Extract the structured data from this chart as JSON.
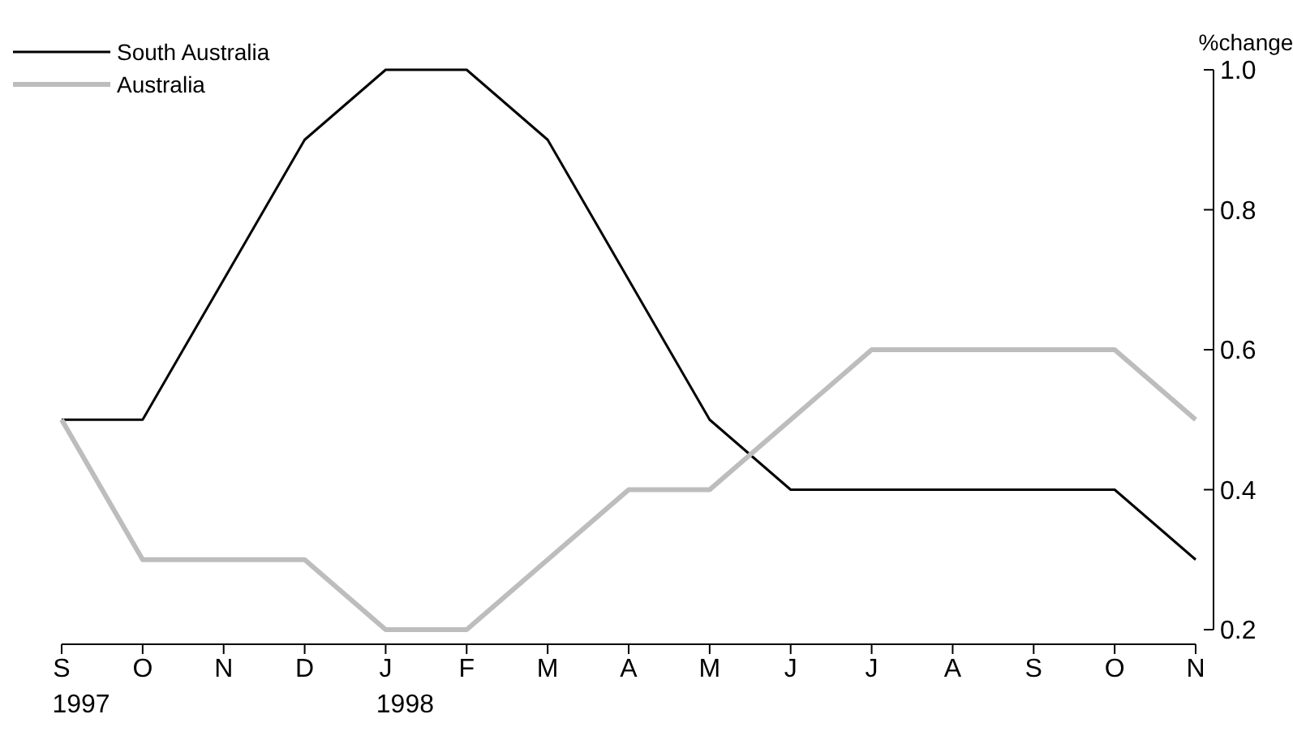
{
  "chart_data": {
    "type": "line",
    "ylabel": "%change",
    "categories": [
      "S\n1997",
      "O",
      "N",
      "D",
      "J\n1998",
      "F",
      "M",
      "A",
      "M",
      "J",
      "J",
      "A",
      "S",
      "O",
      "N"
    ],
    "series": [
      {
        "name": "South Australia",
        "color": "#000000",
        "values": [
          0.5,
          0.5,
          0.7,
          0.9,
          1.0,
          1.0,
          0.9,
          0.7,
          0.5,
          0.4,
          0.4,
          0.4,
          0.4,
          0.4,
          0.3
        ]
      },
      {
        "name": "Australia",
        "color": "#bdbdbd",
        "values": [
          0.5,
          0.3,
          0.3,
          0.3,
          0.2,
          0.2,
          0.3,
          0.4,
          0.4,
          0.5,
          0.6,
          0.6,
          0.6,
          0.6,
          0.5
        ]
      }
    ],
    "ylim": [
      0.2,
      1.0
    ],
    "yticks": [
      0.2,
      0.4,
      0.6,
      0.8,
      {
        "value": 1,
        "label": "1.0"
      }
    ],
    "grid": false,
    "legend": "top left",
    "marker": "none",
    "line_style": "solid"
  }
}
